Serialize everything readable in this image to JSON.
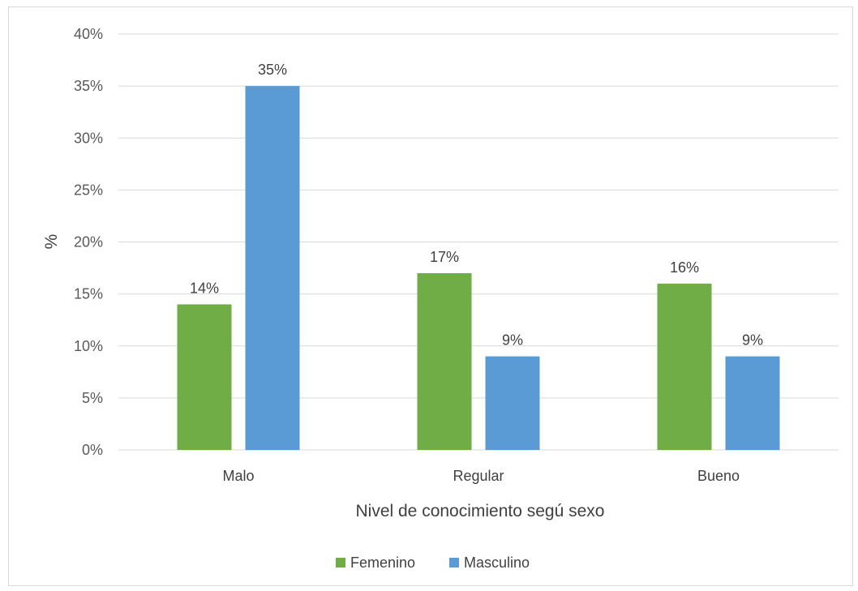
{
  "chart_data": {
    "type": "bar",
    "categories": [
      "Malo",
      "Regular",
      "Bueno"
    ],
    "series": [
      {
        "name": "Femenino",
        "values": [
          14,
          17,
          16
        ],
        "color": "#70ad47"
      },
      {
        "name": "Masculino",
        "values": [
          35,
          9,
          9
        ],
        "color": "#5b9bd5"
      }
    ],
    "data_labels": [
      [
        "14%",
        "17%",
        "16%"
      ],
      [
        "35%",
        "9%",
        "9%"
      ]
    ],
    "xlabel": "Nivel de conocimiento segú sexo",
    "ylabel": "%",
    "ylim": [
      0,
      40
    ],
    "y_ticks": [
      "0%",
      "5%",
      "10%",
      "15%",
      "20%",
      "25%",
      "30%",
      "35%",
      "40%"
    ],
    "grid": true,
    "legend_position": "bottom"
  }
}
